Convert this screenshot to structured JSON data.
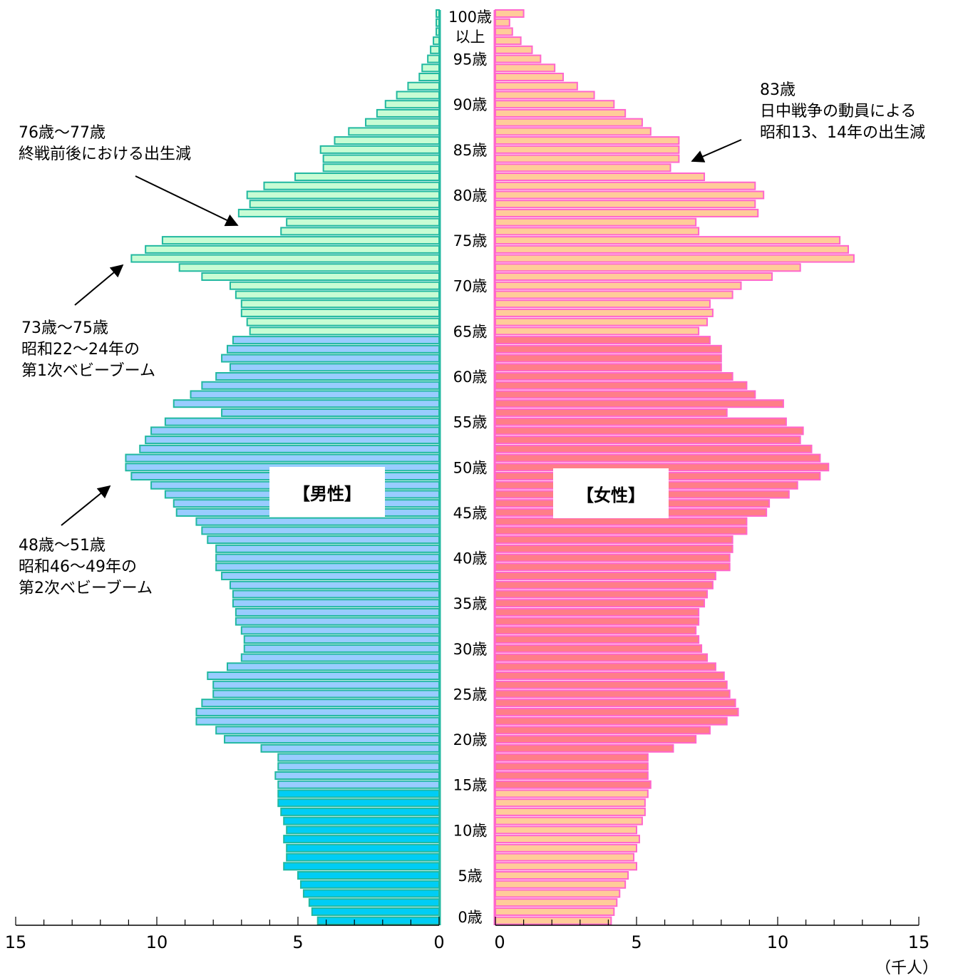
{
  "chart_data": {
    "type": "bar",
    "orientation": "population-pyramid",
    "age_labels": [
      "0歳",
      "5歳",
      "10歳",
      "15歳",
      "20歳",
      "25歳",
      "30歳",
      "35歳",
      "40歳",
      "45歳",
      "50歳",
      "55歳",
      "60歳",
      "65歳",
      "70歳",
      "75歳",
      "80歳",
      "85歳",
      "90歳",
      "95歳",
      "100歳",
      "以上"
    ],
    "ages": [
      0,
      1,
      2,
      3,
      4,
      5,
      6,
      7,
      8,
      9,
      10,
      11,
      12,
      13,
      14,
      15,
      16,
      17,
      18,
      19,
      20,
      21,
      22,
      23,
      24,
      25,
      26,
      27,
      28,
      29,
      30,
      31,
      32,
      33,
      34,
      35,
      36,
      37,
      38,
      39,
      40,
      41,
      42,
      43,
      44,
      45,
      46,
      47,
      48,
      49,
      50,
      51,
      52,
      53,
      54,
      55,
      56,
      57,
      58,
      59,
      60,
      61,
      62,
      63,
      64,
      65,
      66,
      67,
      68,
      69,
      70,
      71,
      72,
      73,
      74,
      75,
      76,
      77,
      78,
      79,
      80,
      81,
      82,
      83,
      84,
      85,
      86,
      87,
      88,
      89,
      90,
      91,
      92,
      93,
      94,
      95,
      96,
      97,
      98,
      99,
      100
    ],
    "series": [
      {
        "name": "【男性】",
        "values": [
          4.3,
          4.5,
          4.6,
          4.8,
          4.9,
          5.0,
          5.5,
          5.4,
          5.4,
          5.5,
          5.4,
          5.5,
          5.6,
          5.7,
          5.7,
          5.7,
          5.8,
          5.7,
          5.7,
          6.3,
          7.6,
          7.9,
          8.6,
          8.6,
          8.4,
          8.0,
          8.0,
          8.2,
          7.5,
          7.0,
          6.9,
          6.9,
          7.0,
          7.2,
          7.2,
          7.3,
          7.3,
          7.4,
          7.7,
          7.9,
          7.9,
          7.9,
          8.2,
          8.4,
          8.6,
          9.3,
          9.4,
          9.7,
          10.2,
          10.9,
          11.1,
          11.1,
          10.6,
          10.4,
          10.2,
          9.7,
          7.7,
          9.4,
          8.8,
          8.4,
          7.9,
          7.4,
          7.7,
          7.5,
          7.3,
          6.7,
          6.8,
          7.0,
          7.0,
          7.2,
          7.4,
          8.4,
          9.2,
          10.9,
          10.4,
          9.8,
          5.6,
          5.4,
          7.1,
          6.7,
          6.8,
          6.2,
          5.1,
          4.1,
          4.1,
          4.2,
          3.7,
          3.2,
          2.6,
          2.2,
          1.9,
          1.5,
          1.1,
          0.7,
          0.6,
          0.4,
          0.3,
          0.2,
          0.1,
          0.1,
          0.1
        ]
      },
      {
        "name": "【女性】",
        "values": [
          4.1,
          4.2,
          4.3,
          4.4,
          4.6,
          4.7,
          5.0,
          4.9,
          5.0,
          5.1,
          5.0,
          5.2,
          5.3,
          5.3,
          5.4,
          5.5,
          5.4,
          5.4,
          5.4,
          6.3,
          7.1,
          7.6,
          8.2,
          8.6,
          8.5,
          8.3,
          8.2,
          8.1,
          7.8,
          7.5,
          7.3,
          7.2,
          7.1,
          7.2,
          7.2,
          7.4,
          7.5,
          7.7,
          7.8,
          8.3,
          8.3,
          8.4,
          8.4,
          8.9,
          8.9,
          9.6,
          9.7,
          10.4,
          10.7,
          11.5,
          11.8,
          11.5,
          11.2,
          10.8,
          10.9,
          10.3,
          8.2,
          10.2,
          9.2,
          8.9,
          8.4,
          8.0,
          8.0,
          8.0,
          7.6,
          7.2,
          7.5,
          7.7,
          7.6,
          8.4,
          8.7,
          9.8,
          10.8,
          12.7,
          12.5,
          12.2,
          7.2,
          7.1,
          9.3,
          9.2,
          9.5,
          9.2,
          7.4,
          6.2,
          6.5,
          6.5,
          6.5,
          5.5,
          5.2,
          4.6,
          4.2,
          3.5,
          2.9,
          2.4,
          2.1,
          1.6,
          1.3,
          0.9,
          0.6,
          0.5,
          1.0
        ]
      }
    ],
    "x_ticks": [
      "15",
      "10",
      "5",
      "0"
    ],
    "xlim": [
      0,
      15
    ],
    "unit": "（千人）",
    "box_labels": {
      "male": "【男性】",
      "female": "【女性】"
    },
    "colors": {
      "male_old_fill": "#c8fcd4",
      "male_old_stroke": "#21b8a0",
      "male_work_fill": "#99ccff",
      "male_work_stroke": "#21b8a0",
      "male_young_fill": "#00cdf5",
      "male_young_stroke": "#21b8a0",
      "female_old_fill": "#ffcc99",
      "female_old_stroke": "#ff66cc",
      "female_work_fill": "#ff7e88",
      "female_work_stroke": "#ff66cc",
      "female_young_fill": "#ffcc99",
      "female_young_stroke": "#ff66cc",
      "axis": "#000000"
    },
    "annotations": [
      {
        "id": "a7677",
        "lines": [
          "76歳～77歳",
          "終戦前後における出生減"
        ]
      },
      {
        "id": "a7375",
        "lines": [
          "73歳～75歳",
          "昭和22～24年の",
          "第1次ベビーブーム"
        ]
      },
      {
        "id": "a4851",
        "lines": [
          "48歳～51歳",
          "昭和46～49年の",
          "第2次ベビーブーム"
        ]
      },
      {
        "id": "a83",
        "lines": [
          "83歳",
          "日中戦争の動員による",
          "昭和13、14年の出生減"
        ]
      }
    ]
  }
}
